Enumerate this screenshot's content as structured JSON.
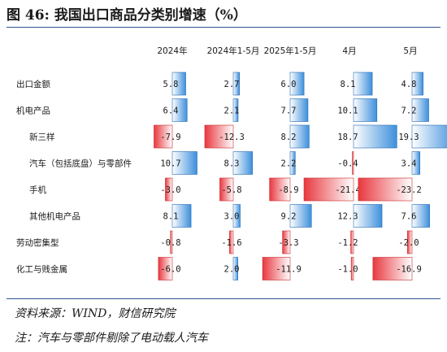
{
  "title": "图 46: 我国出口商品分类别增速（%）",
  "source": "资料来源：WIND，财信研究院",
  "note": "注：汽车与零部件剔除了电动载人汽车",
  "colors": {
    "positive": "#3d8fdc",
    "negative": "#e8383f",
    "rule": "#2f5597"
  },
  "chart_data": {
    "type": "bar",
    "columns": [
      "2024年",
      "2024年1-5月",
      "2025年1-5月",
      "4月",
      "5月"
    ],
    "categories": [
      "出口金额",
      "机电产品",
      "新三样",
      "汽车（包括底盘）与零部件",
      "手机",
      "其他机电产品",
      "劳动密集型",
      "化工与贱金属"
    ],
    "series": [
      {
        "name": "2024年",
        "values": [
          5.8,
          6.4,
          -7.9,
          10.7,
          -3.0,
          8.1,
          -0.8,
          -6.0
        ]
      },
      {
        "name": "2024年1-5月",
        "values": [
          2.7,
          2.1,
          -12.3,
          8.3,
          -5.8,
          3.0,
          -1.6,
          2.0
        ]
      },
      {
        "name": "2025年1-5月",
        "values": [
          6.0,
          7.7,
          8.2,
          2.2,
          -8.9,
          9.2,
          -3.3,
          -11.9
        ]
      },
      {
        "name": "4月",
        "values": [
          8.1,
          10.1,
          18.7,
          -0.4,
          -21.4,
          12.3,
          -1.2,
          -1.0
        ]
      },
      {
        "name": "5月",
        "values": [
          4.8,
          7.2,
          19.3,
          3.4,
          -23.2,
          7.6,
          -2.0,
          -16.9
        ]
      }
    ],
    "labels": [
      [
        "5.8",
        "2.7",
        "6.0",
        "8.1",
        "4.8"
      ],
      [
        "6.4",
        "2.1",
        "7.7",
        "10.1",
        "7.2"
      ],
      [
        "-7.9",
        "-12.3",
        "8.2",
        "18.7",
        "19.3"
      ],
      [
        "10.7",
        "8.3",
        "2.2",
        "-0.4",
        "3.4"
      ],
      [
        "-3.0",
        "-5.8",
        "-8.9",
        "-21.4",
        "-23.2"
      ],
      [
        "8.1",
        "3.0",
        "9.2",
        "12.3",
        "7.6"
      ],
      [
        "-0.8",
        "-1.6",
        "-3.3",
        "-1.2",
        "-2.0"
      ],
      [
        "-6.0",
        "2.0",
        "-11.9",
        "-1.0",
        "-16.9"
      ]
    ],
    "indented_rows": [
      2,
      3,
      4,
      5
    ],
    "xlim": [
      -25,
      20
    ]
  }
}
